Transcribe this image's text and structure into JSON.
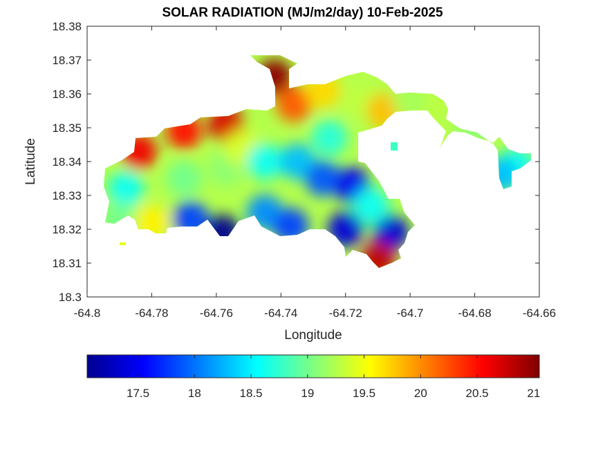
{
  "chart_data": {
    "type": "heatmap",
    "title": "SOLAR RADIATION (MJ/m2/day) 10-Feb-2025",
    "xlabel": "Longitude",
    "ylabel": "Latitude",
    "xlim": [
      -64.8,
      -64.66
    ],
    "ylim": [
      18.3,
      18.38
    ],
    "xticks": [
      "-64.8",
      "-64.78",
      "-64.76",
      "-64.74",
      "-64.72",
      "-64.7",
      "-64.68",
      "-64.66"
    ],
    "yticks": [
      "18.3",
      "18.31",
      "18.32",
      "18.33",
      "18.34",
      "18.35",
      "18.36",
      "18.37",
      "18.38"
    ],
    "colormap": "jet",
    "colorbar": {
      "range": [
        17.05,
        21.05
      ],
      "ticks": [
        "17.5",
        "18",
        "18.5",
        "19",
        "19.5",
        "20",
        "20.5",
        "21"
      ],
      "orientation": "horizontal",
      "placement": "below"
    },
    "grid": false,
    "field_samples": [
      {
        "lon": -64.742,
        "lat": 18.365,
        "value": 21.0
      },
      {
        "lon": -64.757,
        "lat": 18.351,
        "value": 20.7
      },
      {
        "lon": -64.77,
        "lat": 18.349,
        "value": 20.5
      },
      {
        "lon": -64.784,
        "lat": 18.343,
        "value": 20.6
      },
      {
        "lon": -64.736,
        "lat": 18.357,
        "value": 20.2
      },
      {
        "lon": -64.727,
        "lat": 18.361,
        "value": 19.7
      },
      {
        "lon": -64.715,
        "lat": 18.358,
        "value": 19.3
      },
      {
        "lon": -64.708,
        "lat": 18.355,
        "value": 19.8
      },
      {
        "lon": -64.695,
        "lat": 18.356,
        "value": 19.3
      },
      {
        "lon": -64.68,
        "lat": 18.35,
        "value": 19.1
      },
      {
        "lon": -64.667,
        "lat": 18.339,
        "value": 18.6
      },
      {
        "lon": -64.672,
        "lat": 18.336,
        "value": 18.3
      },
      {
        "lon": -64.788,
        "lat": 18.332,
        "value": 18.6
      },
      {
        "lon": -64.79,
        "lat": 18.323,
        "value": 19.0
      },
      {
        "lon": -64.78,
        "lat": 18.322,
        "value": 19.6
      },
      {
        "lon": -64.77,
        "lat": 18.335,
        "value": 19.0
      },
      {
        "lon": -64.757,
        "lat": 18.338,
        "value": 19.1
      },
      {
        "lon": -64.752,
        "lat": 18.344,
        "value": 19.4
      },
      {
        "lon": -64.745,
        "lat": 18.34,
        "value": 18.6
      },
      {
        "lon": -64.735,
        "lat": 18.34,
        "value": 18.3
      },
      {
        "lon": -64.727,
        "lat": 18.335,
        "value": 17.9
      },
      {
        "lon": -64.718,
        "lat": 18.333,
        "value": 17.5
      },
      {
        "lon": -64.72,
        "lat": 18.32,
        "value": 17.4
      },
      {
        "lon": -64.706,
        "lat": 18.319,
        "value": 17.4
      },
      {
        "lon": -64.758,
        "lat": 18.319,
        "value": 17.1
      },
      {
        "lon": -64.768,
        "lat": 18.323,
        "value": 17.8
      },
      {
        "lon": -64.745,
        "lat": 18.325,
        "value": 18.1
      },
      {
        "lon": -64.737,
        "lat": 18.321,
        "value": 17.8
      },
      {
        "lon": -64.712,
        "lat": 18.327,
        "value": 18.6
      },
      {
        "lon": -64.725,
        "lat": 18.347,
        "value": 18.7
      },
      {
        "lon": -64.71,
        "lat": 18.311,
        "value": 20.8
      },
      {
        "lon": -64.7,
        "lat": 18.358,
        "value": 19.2
      }
    ]
  }
}
